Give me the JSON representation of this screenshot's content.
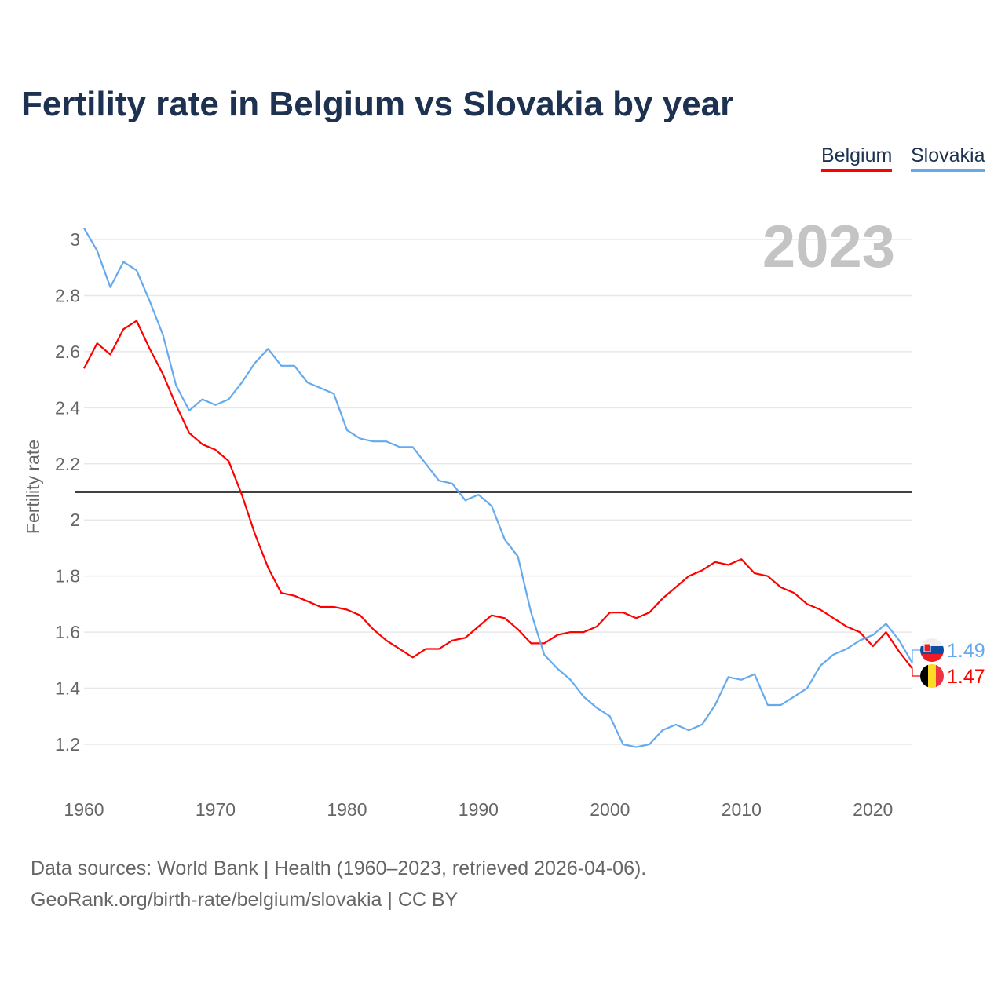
{
  "chart_data": {
    "type": "line",
    "title": "Fertility rate in Belgium vs Slovakia by year",
    "xlabel": "",
    "ylabel": "Fertility rate",
    "year_label": "2023",
    "xlim": [
      1960,
      2023
    ],
    "ylim": [
      1.08,
      3.04
    ],
    "x_ticks": [
      "1960",
      "1970",
      "1980",
      "1990",
      "2000",
      "2010",
      "2020"
    ],
    "y_ticks": [
      "1.2",
      "1.4",
      "1.6",
      "1.8",
      "2",
      "2.2",
      "2.4",
      "2.6",
      "2.8",
      "3"
    ],
    "grid": true,
    "legend_position": "top-right",
    "reference_line": 2.1,
    "x_start": 1960,
    "series": [
      {
        "name": "Belgium",
        "color": "#ff0000",
        "end_label": "1.47",
        "flag": "belgium-flag",
        "values": [
          2.54,
          2.63,
          2.59,
          2.68,
          2.71,
          2.61,
          2.52,
          2.41,
          2.31,
          2.27,
          2.25,
          2.21,
          2.09,
          1.95,
          1.83,
          1.74,
          1.73,
          1.71,
          1.69,
          1.69,
          1.68,
          1.66,
          1.61,
          1.57,
          1.54,
          1.51,
          1.54,
          1.54,
          1.57,
          1.58,
          1.62,
          1.66,
          1.65,
          1.61,
          1.56,
          1.56,
          1.59,
          1.6,
          1.6,
          1.62,
          1.67,
          1.67,
          1.65,
          1.67,
          1.72,
          1.76,
          1.8,
          1.82,
          1.85,
          1.84,
          1.86,
          1.81,
          1.8,
          1.76,
          1.74,
          1.7,
          1.68,
          1.65,
          1.62,
          1.6,
          1.55,
          1.6,
          1.53,
          1.47
        ]
      },
      {
        "name": "Slovakia",
        "color": "#66aaee",
        "end_label": "1.49",
        "flag": "slovakia-flag",
        "values": [
          3.04,
          2.96,
          2.83,
          2.92,
          2.89,
          2.78,
          2.66,
          2.48,
          2.39,
          2.43,
          2.41,
          2.43,
          2.49,
          2.56,
          2.61,
          2.55,
          2.55,
          2.49,
          2.47,
          2.45,
          2.32,
          2.29,
          2.28,
          2.28,
          2.26,
          2.26,
          2.2,
          2.14,
          2.13,
          2.07,
          2.09,
          2.05,
          1.93,
          1.87,
          1.67,
          1.52,
          1.47,
          1.43,
          1.37,
          1.33,
          1.3,
          1.2,
          1.19,
          1.2,
          1.25,
          1.27,
          1.25,
          1.27,
          1.34,
          1.44,
          1.43,
          1.45,
          1.34,
          1.34,
          1.37,
          1.4,
          1.48,
          1.52,
          1.54,
          1.57,
          1.59,
          1.63,
          1.57,
          1.49
        ]
      }
    ]
  },
  "footer": {
    "line1": "Data sources: World Bank | Health (1960–2023, retrieved 2026-04-06).",
    "line2": "GeoRank.org/birth-rate/belgium/slovakia | CC BY"
  }
}
